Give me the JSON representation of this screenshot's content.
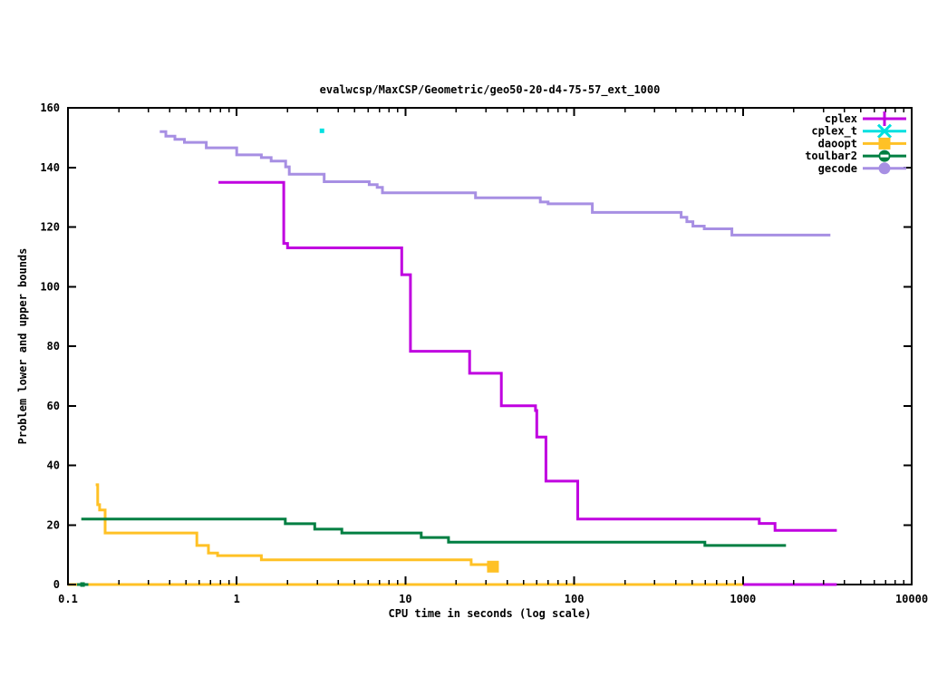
{
  "window": {
    "background": "#ffffff",
    "foreground": "#000000"
  },
  "chart_data": {
    "type": "line",
    "title": "evalwcsp/MaxCSP/Geometric/geo50-20-d4-75-57_ext_1000",
    "xlabel": "CPU time in seconds (log scale)",
    "ylabel": "Problem lower and upper bounds",
    "x_axis": {
      "scale": "log",
      "min": 0.1,
      "max": 10000,
      "major_ticks": [
        0.1,
        1,
        10,
        100,
        1000,
        10000
      ],
      "tick_labels": [
        "0.1",
        "1",
        "10",
        "100",
        "1000",
        "10000"
      ],
      "minor_ticks_per_decade": true
    },
    "y_axis": {
      "scale": "linear",
      "min": 0,
      "max": 160,
      "major_ticks": [
        0,
        20,
        40,
        60,
        80,
        100,
        120,
        140,
        160
      ],
      "tick_labels": [
        "0",
        "20",
        "40",
        "60",
        "80",
        "100",
        "120",
        "140",
        "160"
      ]
    },
    "grid": "off",
    "legend": {
      "position": "top-right-inside",
      "entries": [
        "cplex",
        "cplex_t",
        "daoopt",
        "toulbar2",
        "gecode"
      ]
    },
    "series": [
      {
        "name": "cplex",
        "color": "#c000e0",
        "marker": "plus",
        "style": "steps",
        "lines": [
          {
            "label": "upper-bound",
            "points": [
              [
                0.78,
                135
              ],
              [
                1.9,
                114.5
              ],
              [
                2.0,
                113
              ],
              [
                9.5,
                104
              ],
              [
                10.7,
                78.3
              ],
              [
                24,
                70.9
              ],
              [
                37,
                60
              ],
              [
                59,
                58.4
              ],
              [
                60,
                49.5
              ],
              [
                68,
                34.7
              ],
              [
                105,
                22
              ],
              [
                1250,
                20.5
              ],
              [
                1550,
                18.2
              ],
              [
                3600,
                18.2
              ]
            ]
          },
          {
            "label": "lower-bound",
            "points": [
              [
                1000,
                0
              ],
              [
                3600,
                0
              ]
            ]
          }
        ],
        "marker_points": []
      },
      {
        "name": "cplex_t",
        "color": "#00e0e0",
        "marker": "x",
        "style": "points",
        "lines": [],
        "marker_points": [
          {
            "x": 3.2,
            "y": 152.3,
            "size": 5
          }
        ]
      },
      {
        "name": "daoopt",
        "color": "#ffc125",
        "marker": "square",
        "style": "steps",
        "lines": [
          {
            "label": "upper-bound",
            "points": [
              [
                0.146,
                33.5
              ],
              [
                0.15,
                26.8
              ],
              [
                0.154,
                25
              ],
              [
                0.166,
                17.3
              ],
              [
                0.58,
                13.1
              ],
              [
                0.68,
                10.6
              ],
              [
                0.77,
                9.7
              ],
              [
                1.4,
                8.3
              ],
              [
                24.5,
                6.7
              ],
              [
                31,
                6
              ],
              [
                34,
                6
              ]
            ]
          },
          {
            "label": "lower-bound",
            "points": [
              [
                0.1,
                0
              ],
              [
                1000,
                0
              ]
            ]
          }
        ],
        "marker_points": [
          {
            "x": 33,
            "y": 6,
            "size": 13
          }
        ]
      },
      {
        "name": "toulbar2",
        "color": "#007f42",
        "marker": "circle-dash",
        "style": "steps",
        "lines": [
          {
            "label": "upper-bound",
            "points": [
              [
                0.12,
                22
              ],
              [
                1.94,
                20.4
              ],
              [
                2.9,
                18.6
              ],
              [
                4.2,
                17.3
              ],
              [
                12.4,
                15.8
              ],
              [
                18,
                14.2
              ],
              [
                595,
                13.1
              ],
              [
                1800,
                13.1
              ]
            ]
          },
          {
            "label": "lower-bound",
            "points": [
              [
                0.113,
                0
              ],
              [
                0.132,
                0
              ]
            ]
          }
        ],
        "marker_points": [
          {
            "x": 0.122,
            "y": 0,
            "size": 5
          }
        ]
      },
      {
        "name": "gecode",
        "color": "#a78fe3",
        "marker": "circle",
        "style": "steps",
        "lines": [
          {
            "label": "upper-bound",
            "points": [
              [
                0.35,
                152
              ],
              [
                0.38,
                150.5
              ],
              [
                0.43,
                149.4
              ],
              [
                0.49,
                148.4
              ],
              [
                0.66,
                146.6
              ],
              [
                1.0,
                144.2
              ],
              [
                1.4,
                143.3
              ],
              [
                1.6,
                142.1
              ],
              [
                1.95,
                140.2
              ],
              [
                2.05,
                137.7
              ],
              [
                3.3,
                135.2
              ],
              [
                6.1,
                134.2
              ],
              [
                6.8,
                133.3
              ],
              [
                7.3,
                131.5
              ],
              [
                26,
                129.8
              ],
              [
                63,
                128.4
              ],
              [
                70,
                127.8
              ],
              [
                128,
                124.9
              ],
              [
                430,
                123.3
              ],
              [
                465,
                121.8
              ],
              [
                505,
                120.3
              ],
              [
                590,
                119.4
              ],
              [
                860,
                117.3
              ],
              [
                3300,
                117.3
              ]
            ]
          }
        ],
        "marker_points": []
      }
    ]
  }
}
